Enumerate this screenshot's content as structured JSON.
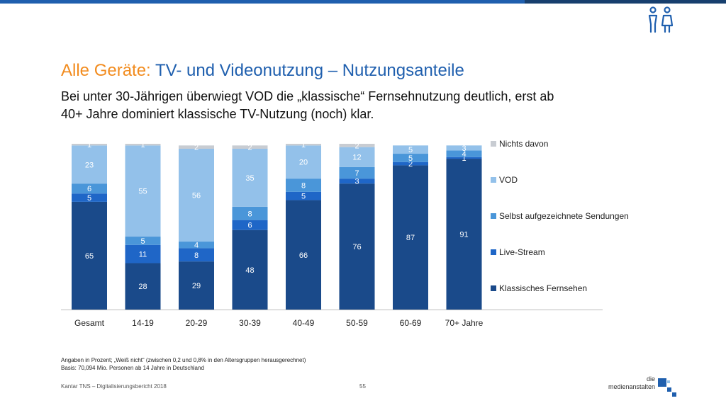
{
  "header": {
    "title_prefix": "Alle Geräte:",
    "title_main": "TV- und Videonutzung – Nutzungsanteile",
    "subtitle_line1": "Bei unter 30-Jährigen überwiegt VOD die „klassische“ Fernsehnutzung deutlich, erst ab",
    "subtitle_line2": "40+ Jahre dominiert klassische TV-Nutzung (noch) klar.",
    "icon": "people-icon"
  },
  "colors": {
    "accent_orange": "#f28c1f",
    "brand_blue": "#1f5fae",
    "klassisch": "#1a4a8a",
    "live": "#1f66c7",
    "selbst": "#4a96d9",
    "vod": "#93c1ea",
    "nichts": "#c8ccd2"
  },
  "chart_data": {
    "type": "bar",
    "stacked": true,
    "categories": [
      "Gesamt",
      "14-19",
      "20-29",
      "30-39",
      "40-49",
      "50-59",
      "60-69",
      "70+ Jahre"
    ],
    "series": [
      {
        "name": "Klassisches Fernsehen",
        "values": [
          65,
          28,
          29,
          48,
          66,
          76,
          87,
          91
        ]
      },
      {
        "name": "Live-Stream",
        "values": [
          5,
          11,
          8,
          6,
          5,
          3,
          2,
          1
        ]
      },
      {
        "name": "Selbst aufgezeichnete Sendungen",
        "values": [
          6,
          5,
          4,
          8,
          8,
          7,
          5,
          4
        ]
      },
      {
        "name": "VOD",
        "values": [
          23,
          55,
          56,
          35,
          20,
          12,
          5,
          3
        ]
      },
      {
        "name": "Nichts davon",
        "values": [
          1,
          1,
          2,
          2,
          1,
          2,
          null,
          null
        ]
      }
    ],
    "legend_position": "right",
    "grid": false
  },
  "legend": {
    "items": [
      "Nichts davon",
      "VOD",
      "Selbst aufgezeichnete Sendungen",
      "Live-Stream",
      "Klassisches Fernsehen"
    ]
  },
  "footnote": {
    "line1": "Angaben in Prozent; „Weiß nicht“ (zwischen 0,2 und 0,8% in den Altersgruppen herausgerechnet)",
    "line2": "Basis: 70,094 Mio. Personen ab 14 Jahre in Deutschland"
  },
  "footer": {
    "source": "Kantar TNS – Digitalisierungsbericht 2018",
    "page": "55",
    "logo_line1": "die",
    "logo_line2": "medienanstalten"
  }
}
